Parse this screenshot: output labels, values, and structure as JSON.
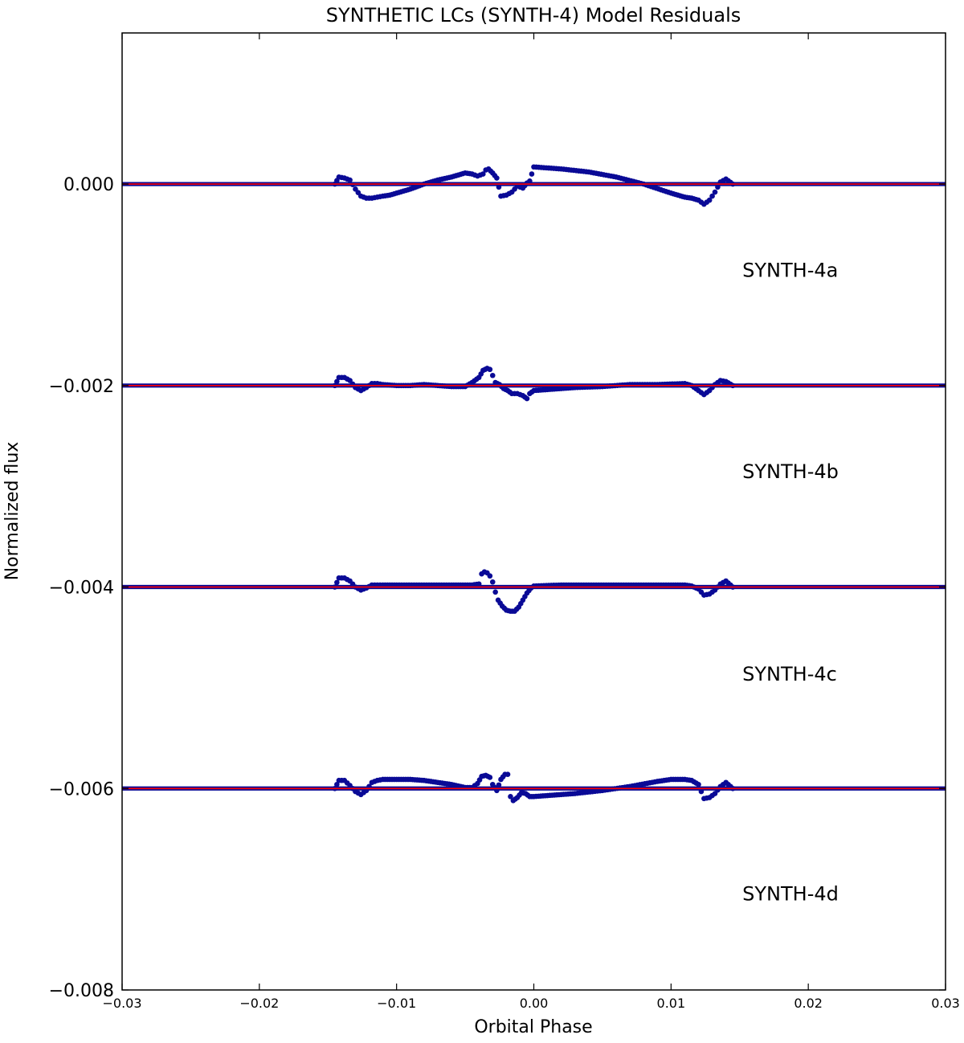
{
  "chart_data": {
    "type": "scatter",
    "title": "SYNTHETIC LCs (SYNTH-4) Model Residuals",
    "xlabel": "Orbital Phase",
    "ylabel": "Normalized flux",
    "xlim": [
      -0.03,
      0.03
    ],
    "ylim": [
      -0.008,
      0.0015
    ],
    "grid": false,
    "xticks": [
      -0.03,
      -0.02,
      -0.01,
      0.0,
      0.01,
      0.02,
      0.03
    ],
    "xtick_labels": [
      "−0.03",
      "−0.02",
      "−0.01",
      "0.00",
      "0.01",
      "0.02",
      "0.03"
    ],
    "yticks": [
      0.0,
      -0.002,
      -0.004,
      -0.006,
      -0.008
    ],
    "ytick_labels": [
      "0.000",
      "−0.002",
      "−0.004",
      "−0.006",
      "−0.008"
    ],
    "colors": {
      "points": "#0a0a96",
      "model": "#ff0000"
    },
    "annotations": [
      {
        "text": "SYNTH-4a",
        "x": 0.0152,
        "y": -0.00092
      },
      {
        "text": "SYNTH-4b",
        "x": 0.0152,
        "y": -0.00292
      },
      {
        "text": "SYNTH-4c",
        "x": 0.0152,
        "y": -0.00493
      },
      {
        "text": "SYNTH-4d",
        "x": 0.0152,
        "y": -0.00711
      }
    ],
    "series": [
      {
        "label": "SYNTH-4a",
        "baseline": 0.0,
        "x": [
          -0.0145,
          -0.0142,
          -0.0138,
          -0.0134,
          -0.013,
          -0.0126,
          -0.0122,
          -0.0118,
          -0.0114,
          -0.011,
          -0.0105,
          -0.01,
          -0.009,
          -0.008,
          -0.007,
          -0.006,
          -0.005,
          -0.0045,
          -0.0041,
          -0.0037,
          -0.0035,
          -0.0033,
          -0.003,
          -0.0027,
          -0.0024,
          -0.002,
          -0.0016,
          -0.0012,
          -0.0008,
          -0.0005,
          -0.0003,
          0.0,
          0.002,
          0.004,
          0.006,
          0.008,
          0.01,
          0.011,
          0.0115,
          0.012,
          0.0124,
          0.0128,
          0.0132,
          0.0136,
          0.014,
          0.0145
        ],
        "y": [
          0.0,
          7e-05,
          6e-05,
          4e-05,
          -5e-05,
          -0.00012,
          -0.00014,
          -0.00014,
          -0.00013,
          -0.00012,
          -0.00011,
          -9e-05,
          -5e-05,
          0.0,
          4e-05,
          7e-05,
          0.00011,
          0.0001,
          8e-05,
          0.0001,
          0.00014,
          0.00015,
          0.00011,
          6e-05,
          -0.00012,
          -0.00011,
          -8e-05,
          -2e-05,
          -4e-05,
          1e-05,
          3e-05,
          0.00017,
          0.00015,
          0.00012,
          7e-05,
          0.0,
          -9e-05,
          -0.00013,
          -0.00014,
          -0.00016,
          -0.0002,
          -0.00016,
          -8e-05,
          2e-05,
          5e-05,
          0.0
        ]
      },
      {
        "label": "SYNTH-4b",
        "baseline": -0.002,
        "x": [
          -0.0145,
          -0.0142,
          -0.0138,
          -0.0134,
          -0.013,
          -0.0126,
          -0.0122,
          -0.0118,
          -0.0114,
          -0.011,
          -0.01,
          -0.009,
          -0.008,
          -0.007,
          -0.006,
          -0.005,
          -0.0045,
          -0.004,
          -0.0037,
          -0.0034,
          -0.0032,
          -0.003,
          -0.0028,
          -0.0025,
          -0.0022,
          -0.0019,
          -0.0016,
          -0.0012,
          -0.0008,
          -0.0005,
          -0.0003,
          0.0,
          0.001,
          0.002,
          0.003,
          0.005,
          0.007,
          0.009,
          0.011,
          0.0115,
          0.012,
          0.0124,
          0.0128,
          0.0132,
          0.0136,
          0.014,
          0.0145
        ],
        "y": [
          -0.002,
          -0.00192,
          -0.00192,
          -0.00195,
          -0.00202,
          -0.00205,
          -0.00202,
          -0.00198,
          -0.00198,
          -0.00199,
          -0.002,
          -0.002,
          -0.00199,
          -0.002,
          -0.00201,
          -0.00201,
          -0.00197,
          -0.00192,
          -0.00185,
          -0.00183,
          -0.00184,
          -0.0019,
          -0.00197,
          -0.00199,
          -0.00203,
          -0.00205,
          -0.00208,
          -0.00208,
          -0.0021,
          -0.00213,
          -0.00208,
          -0.00205,
          -0.00204,
          -0.00203,
          -0.00202,
          -0.00201,
          -0.00199,
          -0.00199,
          -0.00198,
          -0.002,
          -0.00205,
          -0.00209,
          -0.00205,
          -0.00199,
          -0.00195,
          -0.00196,
          -0.002
        ]
      },
      {
        "label": "SYNTH-4c",
        "baseline": -0.004,
        "x": [
          -0.0145,
          -0.0142,
          -0.0138,
          -0.0134,
          -0.013,
          -0.0126,
          -0.0122,
          -0.0118,
          -0.0114,
          -0.011,
          -0.01,
          -0.008,
          -0.006,
          -0.005,
          -0.0045,
          -0.004,
          -0.0038,
          -0.0036,
          -0.0034,
          -0.0032,
          -0.003,
          -0.0028,
          -0.0026,
          -0.0023,
          -0.002,
          -0.0017,
          -0.0014,
          -0.0011,
          -0.0008,
          -0.0005,
          -0.0002,
          0.0,
          0.002,
          0.004,
          0.006,
          0.008,
          0.01,
          0.011,
          0.0115,
          0.012,
          0.0124,
          0.0128,
          0.0132,
          0.0136,
          0.014,
          0.0145
        ],
        "y": [
          -0.004,
          -0.00391,
          -0.00391,
          -0.00394,
          -0.004,
          -0.00403,
          -0.00401,
          -0.00398,
          -0.00398,
          -0.00398,
          -0.00398,
          -0.00398,
          -0.00398,
          -0.00398,
          -0.00398,
          -0.00397,
          -0.00387,
          -0.00385,
          -0.00386,
          -0.00389,
          -0.00395,
          -0.00405,
          -0.00413,
          -0.00419,
          -0.00423,
          -0.00424,
          -0.00424,
          -0.0042,
          -0.00413,
          -0.00406,
          -0.00401,
          -0.00399,
          -0.00398,
          -0.00398,
          -0.00398,
          -0.00398,
          -0.00398,
          -0.00398,
          -0.00399,
          -0.00402,
          -0.00408,
          -0.00407,
          -0.00403,
          -0.00397,
          -0.00394,
          -0.004
        ]
      },
      {
        "label": "SYNTH-4d",
        "baseline": -0.006,
        "x": [
          -0.0145,
          -0.0142,
          -0.0138,
          -0.0134,
          -0.013,
          -0.0126,
          -0.0122,
          -0.0118,
          -0.0114,
          -0.011,
          -0.01,
          -0.009,
          -0.008,
          -0.007,
          -0.006,
          -0.005,
          -0.0045,
          -0.0041,
          -0.0038,
          -0.0035,
          -0.0032,
          -0.003,
          -0.0027,
          -0.0024,
          -0.0021,
          -0.0019,
          -0.0017,
          -0.0015,
          -0.0012,
          -0.0009,
          -0.0006,
          -0.0003,
          0.0,
          0.001,
          0.002,
          0.003,
          0.005,
          0.007,
          0.009,
          0.01,
          0.011,
          0.0115,
          0.012,
          0.0124,
          0.0128,
          0.0132,
          0.0136,
          0.014,
          0.0145
        ],
        "y": [
          -0.006,
          -0.00592,
          -0.00592,
          -0.00597,
          -0.00603,
          -0.00606,
          -0.00602,
          -0.00594,
          -0.00592,
          -0.00591,
          -0.00591,
          -0.00591,
          -0.00592,
          -0.00594,
          -0.00596,
          -0.00599,
          -0.00599,
          -0.00595,
          -0.00588,
          -0.00587,
          -0.00589,
          -0.00596,
          -0.00602,
          -0.00591,
          -0.00586,
          -0.00586,
          -0.00608,
          -0.00612,
          -0.00609,
          -0.00604,
          -0.00605,
          -0.00608,
          -0.00608,
          -0.00607,
          -0.00606,
          -0.00605,
          -0.00602,
          -0.00598,
          -0.00593,
          -0.00591,
          -0.00591,
          -0.00592,
          -0.00596,
          -0.0061,
          -0.00609,
          -0.00605,
          -0.00598,
          -0.00594,
          -0.006
        ]
      }
    ]
  }
}
